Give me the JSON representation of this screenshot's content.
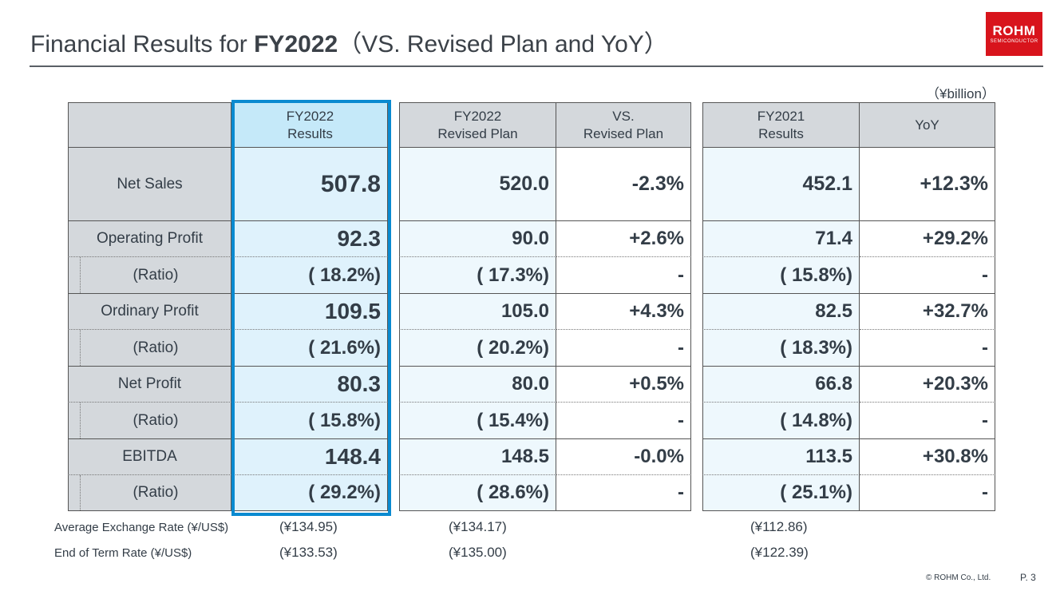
{
  "title": {
    "prefix": "Financial Results for ",
    "bold": "FY2022",
    "suffix": "（VS. Revised Plan and YoY）"
  },
  "logo": {
    "main": "ROHM",
    "sub": "SEMICONDUCTOR"
  },
  "unit": "（¥billion）",
  "colors": {
    "highlight": "#0a8ad0",
    "logo": "#d8141c",
    "header_gray": "#d4d8dc",
    "fy2022_bg": "#dff2fc"
  },
  "headers": {
    "fy2022_results": [
      "FY2022",
      "Results"
    ],
    "revised_plan": [
      "FY2022",
      "Revised Plan"
    ],
    "vs_plan": [
      "VS.",
      "Revised Plan"
    ],
    "fy2021_results": [
      "FY2021",
      "Results"
    ],
    "yoy": [
      "YoY"
    ]
  },
  "rows": [
    {
      "label": "Net Sales",
      "fy2022": "507.8",
      "plan": "520.0",
      "vs": "-2.3%",
      "fy2021": "452.1",
      "yoy": "+12.3%"
    },
    {
      "label": "Operating Profit",
      "fy2022": "92.3",
      "plan": "90.0",
      "vs": "+2.6%",
      "fy2021": "71.4",
      "yoy": "+29.2%"
    },
    {
      "label": "(Ratio)",
      "fy2022": "( 18.2%)",
      "plan": "( 17.3%)",
      "vs": "-",
      "fy2021": "( 15.8%)",
      "yoy": "-"
    },
    {
      "label": "Ordinary Profit",
      "fy2022": "109.5",
      "plan": "105.0",
      "vs": "+4.3%",
      "fy2021": "82.5",
      "yoy": "+32.7%"
    },
    {
      "label": "(Ratio)",
      "fy2022": "( 21.6%)",
      "plan": "( 20.2%)",
      "vs": "-",
      "fy2021": "( 18.3%)",
      "yoy": "-"
    },
    {
      "label": "Net Profit",
      "fy2022": "80.3",
      "plan": "80.0",
      "vs": "+0.5%",
      "fy2021": "66.8",
      "yoy": "+20.3%"
    },
    {
      "label": "(Ratio)",
      "fy2022": "( 15.8%)",
      "plan": "( 15.4%)",
      "vs": "-",
      "fy2021": "( 14.8%)",
      "yoy": "-"
    },
    {
      "label": "EBITDA",
      "fy2022": "148.4",
      "plan": "148.5",
      "vs": "-0.0%",
      "fy2021": "113.5",
      "yoy": "+30.8%"
    },
    {
      "label": "(Ratio)",
      "fy2022": "( 29.2%)",
      "plan": "( 28.6%)",
      "vs": "-",
      "fy2021": "( 25.1%)",
      "yoy": "-"
    }
  ],
  "footer": [
    {
      "label": "Average Exchange Rate (¥/US$)",
      "fy2022": "(¥134.95)",
      "plan": "(¥134.17)",
      "fy2021": "(¥112.86)"
    },
    {
      "label": "End of Term Rate (¥/US$)",
      "fy2022": "(¥133.53)",
      "plan": "(¥135.00)",
      "fy2021": "(¥122.39)"
    }
  ],
  "copyright": "© ROHM Co., Ltd.",
  "page": "P. 3"
}
